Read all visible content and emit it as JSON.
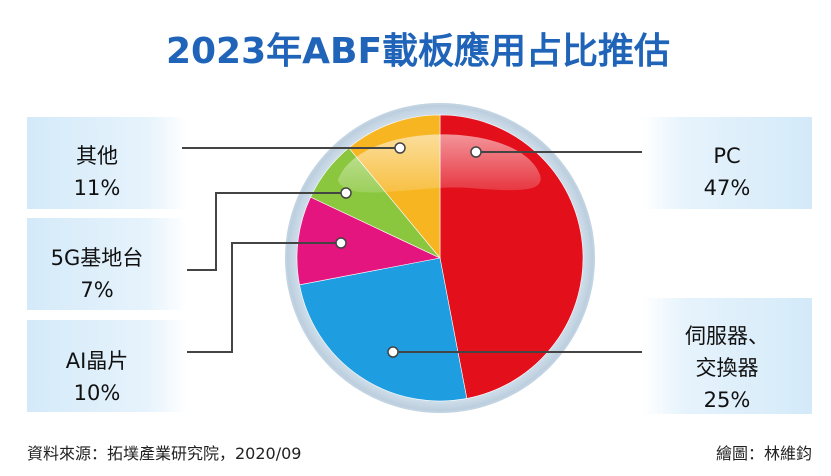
{
  "chart_data": {
    "type": "pie",
    "title": "2023年ABF載板應用占比推估",
    "unit": "%",
    "slices": [
      {
        "label": "PC",
        "value": 47,
        "value_label": "47%",
        "color": "#e3101c"
      },
      {
        "label": "伺服器、交換器",
        "label_lines": [
          "伺服器、",
          "交換器"
        ],
        "value": 25,
        "value_label": "25%",
        "color": "#1e9ee0"
      },
      {
        "label": "AI晶片",
        "value": 10,
        "value_label": "10%",
        "color": "#e5157f"
      },
      {
        "label": "5G基地台",
        "value": 7,
        "value_label": "7%",
        "color": "#8bc73e"
      },
      {
        "label": "其他",
        "value": 11,
        "value_label": "11%",
        "color": "#f7b522"
      }
    ]
  },
  "source": "資料來源：拓墣產業研究院，2020/09",
  "credit": "繪圖：林維鈞",
  "colors": {
    "title": "#1f64b8",
    "label_box": "#dceefa",
    "leader_line": "#444444",
    "ring": "#c7d8e6",
    "background": "#ffffff"
  }
}
